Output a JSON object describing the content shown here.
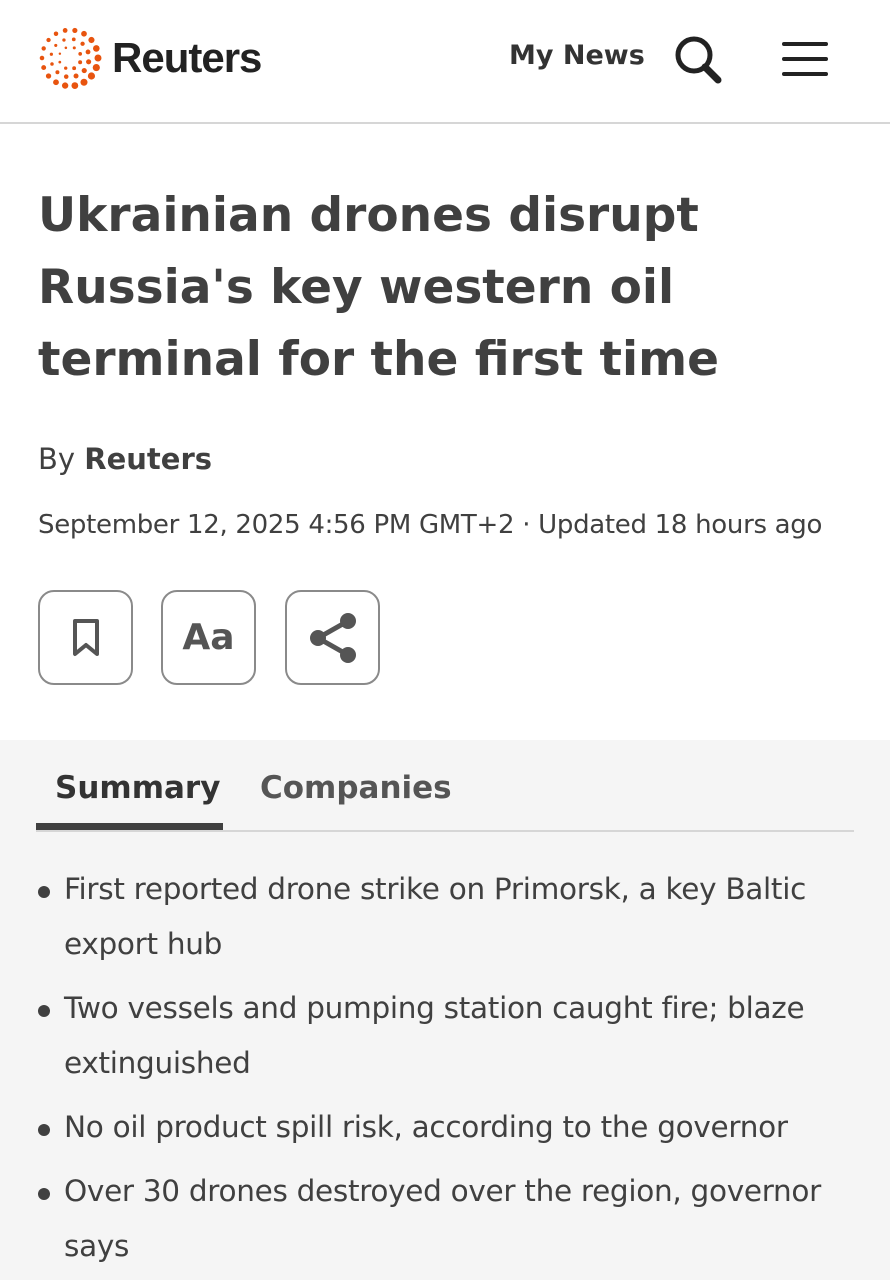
{
  "header": {
    "brand": "Reuters",
    "brand_color": "#e8540f",
    "my_news": "My News",
    "search_icon": "search-icon",
    "menu_icon": "hamburger-menu-icon"
  },
  "article": {
    "title": "Ukrainian drones disrupt Russia's key western oil terminal for the first time",
    "by_prefix": "By",
    "author": "Reuters",
    "date": "September 12, 2025 4:56 PM GMT+2 · Updated 18 hours ago",
    "actions": {
      "bookmark_icon": "bookmark-icon",
      "text_size": "Aa",
      "share_icon": "share-icon"
    }
  },
  "summary": {
    "tabs": [
      {
        "label": "Summary",
        "active": true
      },
      {
        "label": "Companies",
        "active": false
      }
    ],
    "bullets": [
      "First reported drone strike on Primorsk, a key Baltic export hub",
      "Two vessels and pumping station caught fire; blaze extinguished",
      "No oil product spill risk, according to the governor",
      "Over 30 drones destroyed over the region, governor says"
    ]
  }
}
